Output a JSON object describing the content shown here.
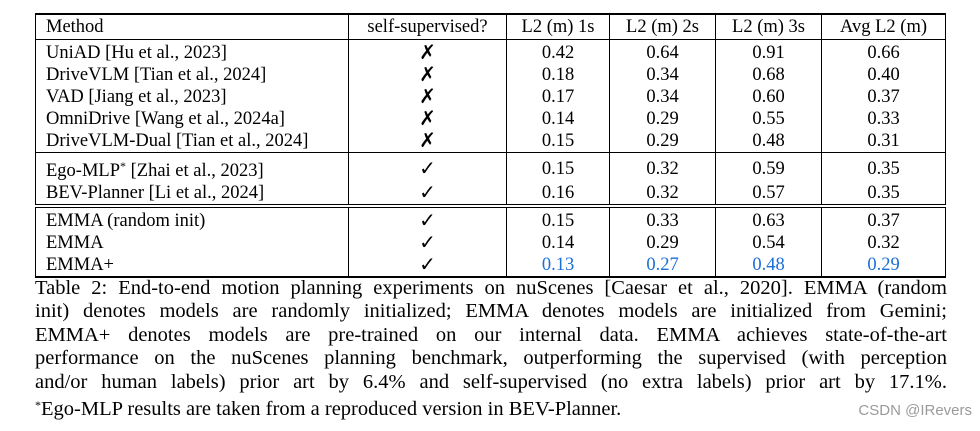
{
  "table": {
    "headers": [
      "Method",
      "self-supervised?",
      "L2 (m) 1s",
      "L2 (m) 2s",
      "L2 (m) 3s",
      "Avg L2 (m)"
    ],
    "rows": [
      {
        "method": "UniAD [Hu et al., 2023]",
        "sup": "✗",
        "v1": "0.42",
        "v2": "0.64",
        "v3": "0.91",
        "avg": "0.66"
      },
      {
        "method": "DriveVLM [Tian et al., 2024]",
        "sup": "✗",
        "v1": "0.18",
        "v2": "0.34",
        "v3": "0.68",
        "avg": "0.40"
      },
      {
        "method": "VAD [Jiang et al., 2023]",
        "sup": "✗",
        "v1": "0.17",
        "v2": "0.34",
        "v3": "0.60",
        "avg": "0.37"
      },
      {
        "method": "OmniDrive [Wang et al., 2024a]",
        "sup": "✗",
        "v1": "0.14",
        "v2": "0.29",
        "v3": "0.55",
        "avg": "0.33"
      },
      {
        "method": "DriveVLM-Dual [Tian et al., 2024]",
        "sup": "✗",
        "v1": "0.15",
        "v2": "0.29",
        "v3": "0.48",
        "avg": "0.31"
      },
      {
        "method": "Ego-MLP",
        "method_sup": "*",
        "method_cite": " [Zhai et al., 2023]",
        "sup": "✓",
        "v1": "0.15",
        "v2": "0.32",
        "v3": "0.59",
        "avg": "0.35"
      },
      {
        "method": "BEV-Planner [Li et al., 2024]",
        "sup": "✓",
        "v1": "0.16",
        "v2": "0.32",
        "v3": "0.57",
        "avg": "0.35"
      },
      {
        "method": "EMMA (random init)",
        "sup": "✓",
        "v1": "0.15",
        "v2": "0.33",
        "v3": "0.63",
        "avg": "0.37"
      },
      {
        "method": "EMMA",
        "sup": "✓",
        "v1": "0.14",
        "v2": "0.29",
        "v3": "0.54",
        "avg": "0.32"
      },
      {
        "method": "EMMA+",
        "sup": "✓",
        "v1": "0.13",
        "v2": "0.27",
        "v3": "0.48",
        "avg": "0.29"
      }
    ]
  },
  "caption": {
    "lines": [
      "Table 2: End-to-end motion planning experiments on nuScenes [Caesar et al., 2020]. EMMA (random",
      "init) denotes models are randomly initialized; EMMA denotes models are initialized from Gemini;",
      "EMMA+ denotes models are pre-trained on our internal data. EMMA achieves state-of-the-art",
      "performance on the nuScenes planning benchmark, outperforming the supervised (with perception",
      "and/or human labels) prior art by 6.4% and self-supervised (no extra labels) prior art by 17.1%."
    ],
    "footnote_mark": "*",
    "footnote": "Ego-MLP results are taken from a reproduced version in BEV-Planner."
  },
  "watermark": "CSDN @IRevers",
  "colors": {
    "best": "#1a6fd8"
  }
}
